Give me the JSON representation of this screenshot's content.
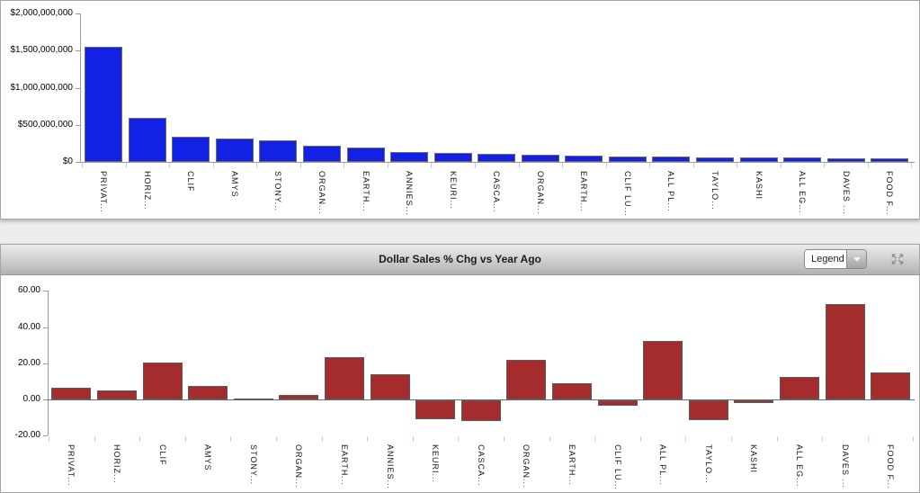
{
  "colors": {
    "axis_gray": "#9b9b9b",
    "zero_line_gray": "#666666",
    "xtick_blue": "#bcd2ec",
    "bar_blue": "#1321e4",
    "bar_red": "#a52c2c",
    "panel_background": "#ffffff",
    "page_background": "#ececec"
  },
  "icons": {
    "legend_caret": "chevron-down-icon",
    "expand": "expand-arrows-icon"
  },
  "chart_data": [
    {
      "type": "bar",
      "title": "",
      "xlabel": "",
      "ylabel": "",
      "legend": "none",
      "grid": false,
      "ylim": [
        0,
        2000000000
      ],
      "bar_color": "#1321e4",
      "bar_border": "#6b6b6b",
      "yticks": [
        {
          "value": 0,
          "label": "$0"
        },
        {
          "value": 500000000,
          "label": "$500,000,000"
        },
        {
          "value": 1000000000,
          "label": "$1,000,000,000"
        },
        {
          "value": 1500000000,
          "label": "$1,500,000,000"
        },
        {
          "value": 2000000000,
          "label": "$2,000,000,000"
        }
      ],
      "categories": [
        "PRIVAT...",
        "HORIZ...",
        "CLIF",
        "AMYS",
        "STONY...",
        "ORGAN...",
        "EARTH...",
        "ANNIES...",
        "KEURI...",
        "CASCA...",
        "ORGAN...",
        "EARTH...",
        "CLIF LU...",
        "ALL PL...",
        "TAYLO...",
        "KASHI",
        "ALL EG...",
        "DAVES ...",
        "FOOD F..."
      ],
      "values": [
        1552000000,
        598000000,
        341000000,
        318000000,
        296000000,
        219000000,
        196000000,
        133000000,
        123000000,
        106000000,
        97000000,
        86000000,
        77000000,
        68000000,
        63000000,
        58000000,
        55000000,
        52000000,
        46000000
      ]
    },
    {
      "type": "bar",
      "title": "Dollar Sales % Chg vs Year Ago",
      "legend_label": "Legend",
      "xlabel": "",
      "ylabel": "",
      "legend": "collapsed-dropdown",
      "grid": false,
      "ylim": [
        -20,
        60
      ],
      "bar_color": "#a52c2c",
      "bar_border": "#5c5c5c",
      "yticks": [
        {
          "value": 60,
          "label": "60.00"
        },
        {
          "value": 40,
          "label": "40.00"
        },
        {
          "value": 20,
          "label": "20.00"
        },
        {
          "value": 0,
          "label": "0.00"
        },
        {
          "value": -20,
          "label": "-20.00"
        }
      ],
      "categories": [
        "PRIVAT...",
        "HORIZ...",
        "CLIF",
        "AMYS",
        "STONY...",
        "ORGAN...",
        "EARTH...",
        "ANNIES...",
        "KEURI...",
        "CASCA...",
        "ORGAN...",
        "EARTH...",
        "CLIF LU...",
        "ALL PL...",
        "TAYLO...",
        "KASHI",
        "ALL EG...",
        "DAVES ...",
        "FOOD F..."
      ],
      "values": [
        6.5,
        5.2,
        20.3,
        7.7,
        0.5,
        2.5,
        23.2,
        13.8,
        -10.5,
        -11.5,
        21.8,
        8.7,
        -3.0,
        32.5,
        -10.8,
        -1.5,
        12.3,
        52.8,
        15.0
      ]
    }
  ]
}
